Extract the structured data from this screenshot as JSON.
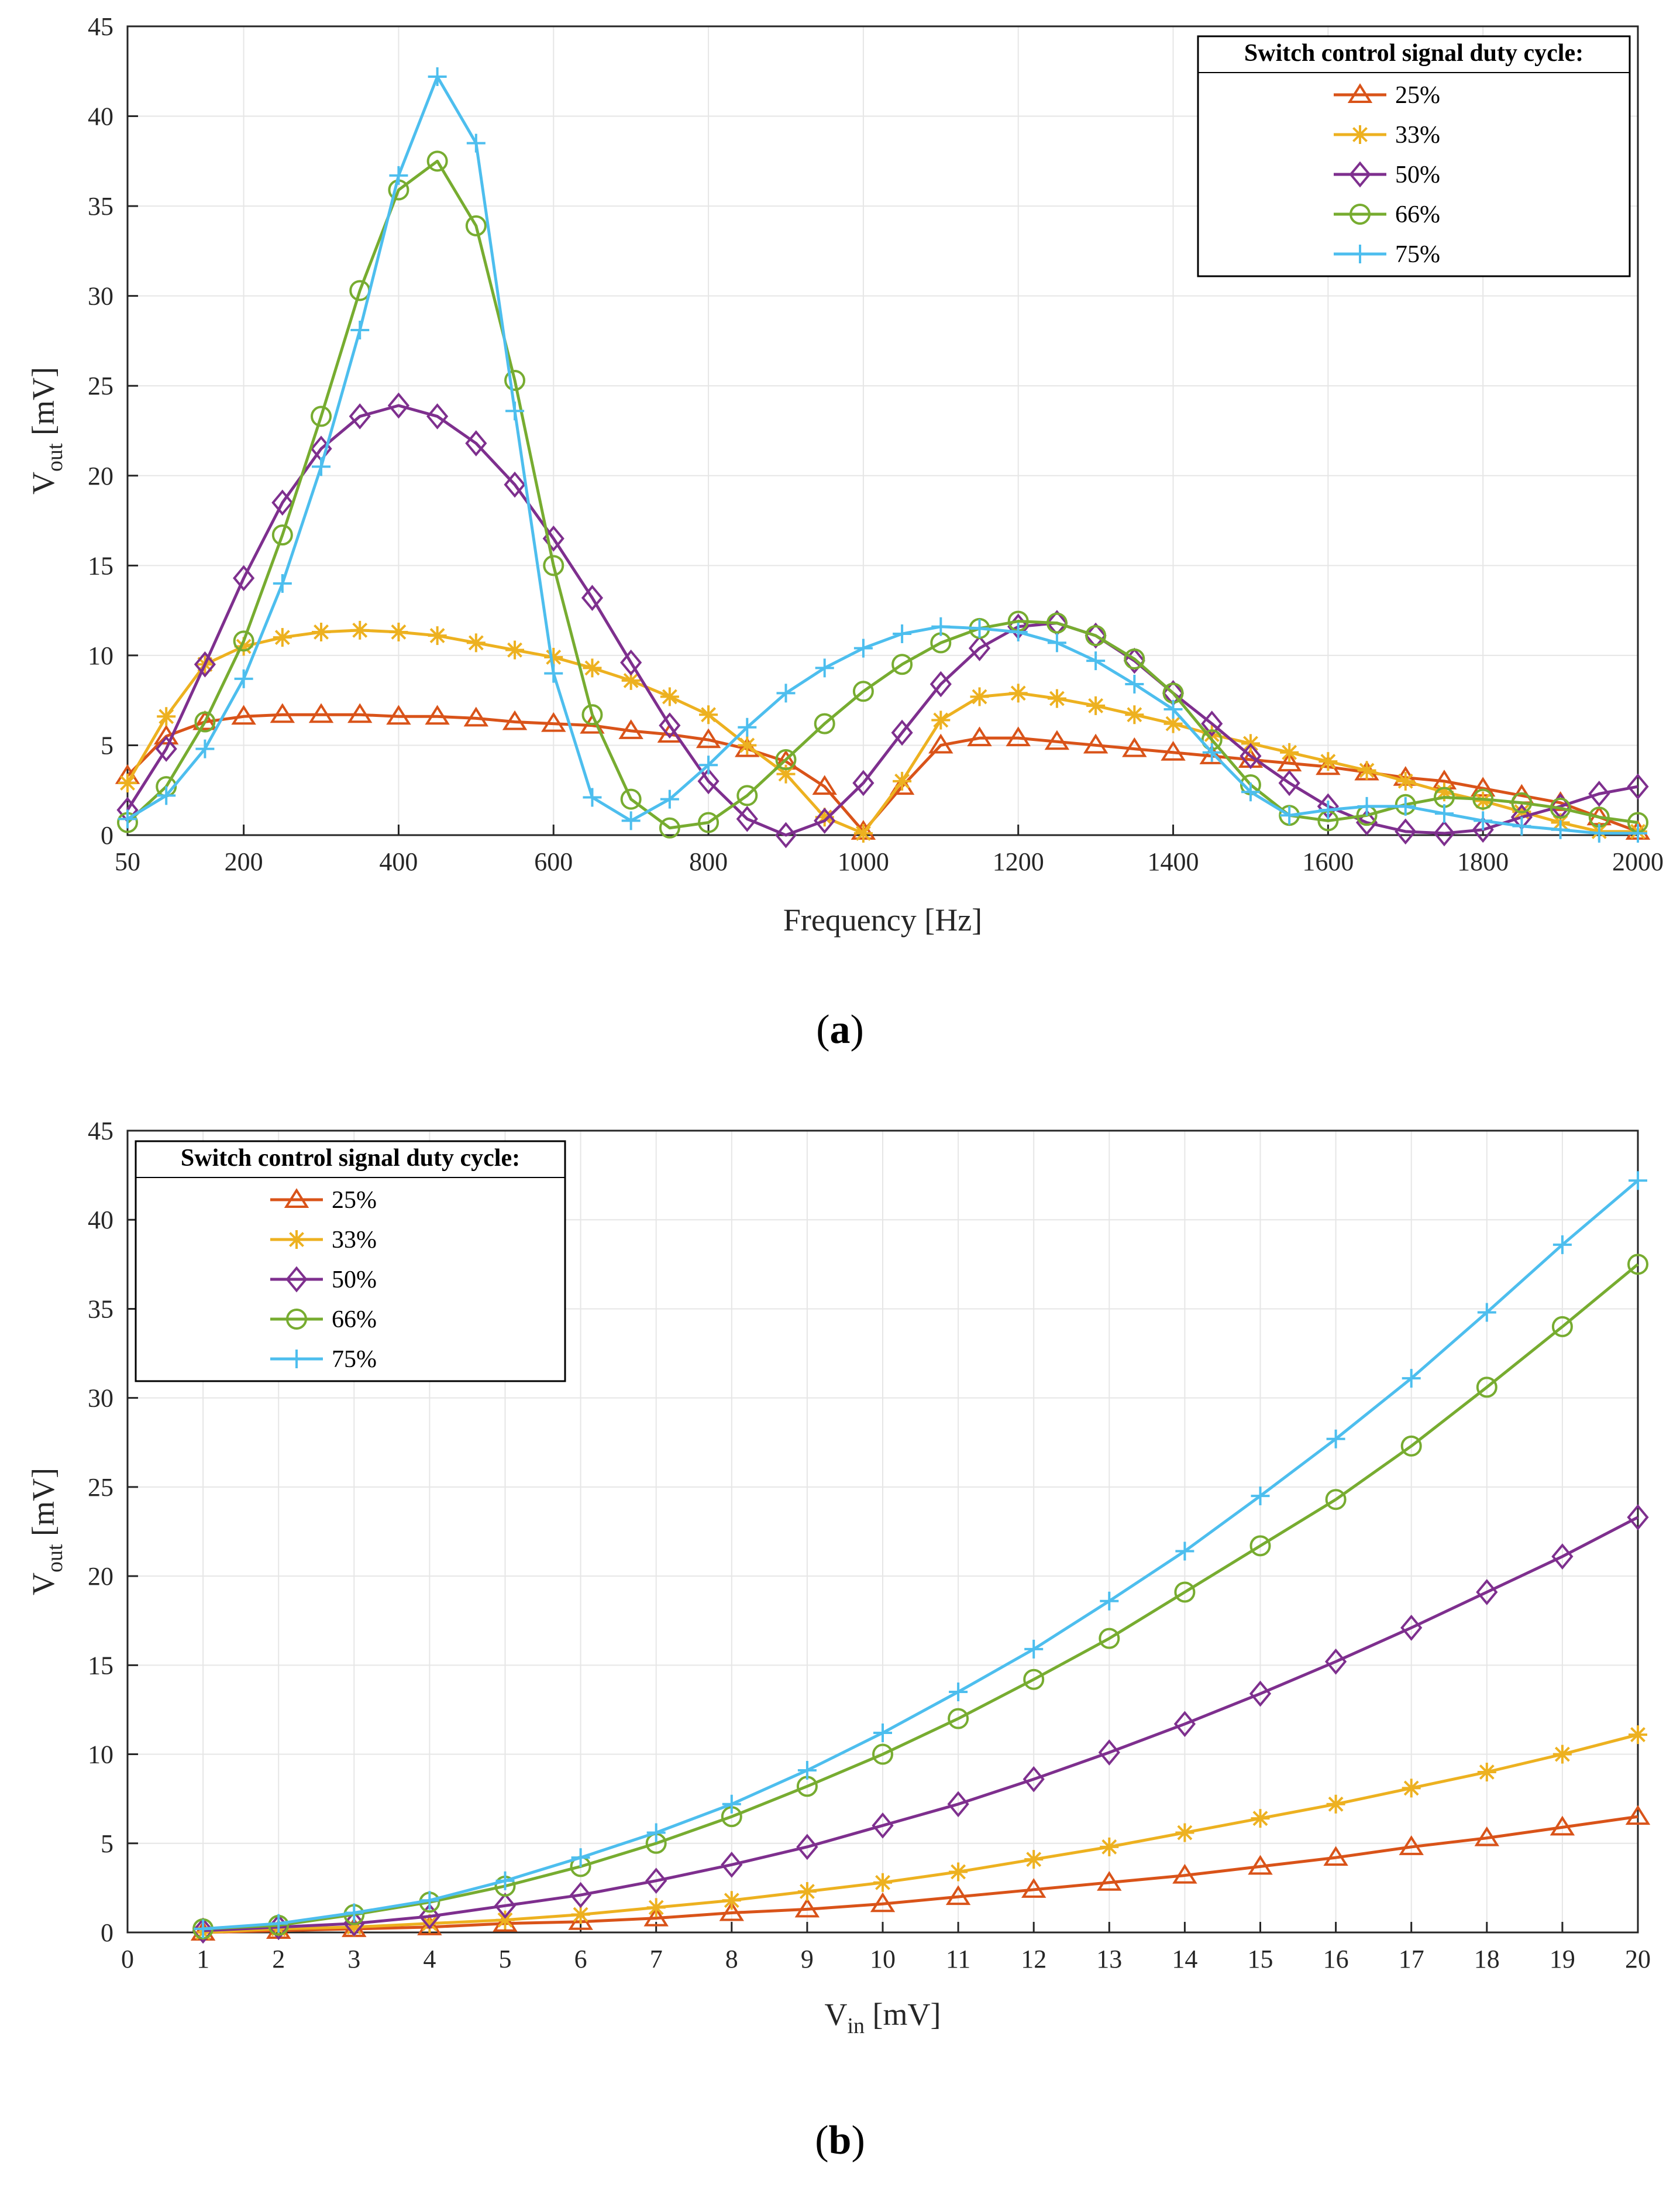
{
  "colors": {
    "25%": "#D95319",
    "33%": "#EDB120",
    "50%": "#7E2F8E",
    "66%": "#77AC30",
    "75%": "#4DBEEE"
  },
  "chart_data": [
    {
      "type": "line",
      "caption": "a",
      "xlabel": "Frequency [Hz]",
      "ylabel_main": "V",
      "ylabel_sub": "out",
      "ylabel_unit": " [mV]",
      "xlim": [
        50,
        2000
      ],
      "ylim": [
        0,
        45
      ],
      "xticks": [
        50,
        200,
        400,
        600,
        800,
        1000,
        1200,
        1400,
        1600,
        1800,
        2000
      ],
      "yticks": [
        0,
        5,
        10,
        15,
        20,
        25,
        30,
        35,
        40,
        45
      ],
      "grid": true,
      "legend": {
        "title": "Switch control signal duty cycle:",
        "placement": "top-right"
      },
      "x": [
        50,
        100,
        150,
        200,
        250,
        300,
        350,
        400,
        450,
        500,
        550,
        600,
        650,
        700,
        750,
        800,
        850,
        900,
        950,
        1000,
        1050,
        1100,
        1150,
        1200,
        1250,
        1300,
        1350,
        1400,
        1450,
        1500,
        1550,
        1600,
        1650,
        1700,
        1750,
        1800,
        1850,
        1900,
        1950,
        2000
      ],
      "series": [
        {
          "name": "25%",
          "marker": "triangle",
          "values": [
            3.3,
            5.5,
            6.3,
            6.6,
            6.7,
            6.7,
            6.7,
            6.6,
            6.6,
            6.5,
            6.3,
            6.2,
            6.1,
            5.8,
            5.6,
            5.3,
            4.8,
            4.1,
            2.7,
            0.2,
            2.7,
            5.0,
            5.4,
            5.4,
            5.2,
            5.0,
            4.8,
            4.6,
            4.4,
            4.2,
            4.0,
            3.8,
            3.5,
            3.2,
            3.0,
            2.6,
            2.2,
            1.8,
            1.0,
            0.2
          ]
        },
        {
          "name": "33%",
          "marker": "asterisk",
          "values": [
            2.9,
            6.6,
            9.5,
            10.5,
            11.0,
            11.3,
            11.4,
            11.3,
            11.1,
            10.7,
            10.3,
            9.9,
            9.3,
            8.6,
            7.7,
            6.7,
            5.0,
            3.4,
            1.0,
            0.1,
            3.0,
            6.4,
            7.7,
            7.9,
            7.6,
            7.2,
            6.7,
            6.2,
            5.6,
            5.1,
            4.6,
            4.1,
            3.6,
            3.0,
            2.4,
            1.9,
            1.3,
            0.7,
            0.2,
            0.2
          ]
        },
        {
          "name": "50%",
          "marker": "diamond",
          "values": [
            1.4,
            4.8,
            9.5,
            14.3,
            18.5,
            21.5,
            23.3,
            23.9,
            23.3,
            21.8,
            19.5,
            16.5,
            13.2,
            9.6,
            6.1,
            3.0,
            0.9,
            0.0,
            0.8,
            2.9,
            5.7,
            8.4,
            10.4,
            11.6,
            11.8,
            11.1,
            9.7,
            7.9,
            6.2,
            4.4,
            2.9,
            1.6,
            0.7,
            0.2,
            0.1,
            0.3,
            1.0,
            1.6,
            2.3,
            2.7
          ]
        },
        {
          "name": "66%",
          "marker": "circle",
          "values": [
            0.7,
            2.7,
            6.3,
            10.8,
            16.7,
            23.3,
            30.3,
            35.9,
            37.5,
            33.9,
            25.3,
            15.0,
            6.7,
            2.0,
            0.4,
            0.7,
            2.2,
            4.2,
            6.2,
            8.0,
            9.5,
            10.7,
            11.5,
            11.9,
            11.8,
            11.1,
            9.8,
            7.9,
            5.3,
            2.8,
            1.1,
            0.8,
            1.1,
            1.7,
            2.1,
            2.0,
            1.8,
            1.5,
            1.0,
            0.7
          ]
        },
        {
          "name": "75%",
          "marker": "plus",
          "values": [
            0.9,
            2.2,
            4.8,
            8.7,
            14.0,
            20.5,
            28.1,
            36.7,
            42.2,
            38.5,
            23.6,
            9.0,
            2.1,
            0.8,
            2.0,
            3.9,
            6.0,
            7.9,
            9.3,
            10.4,
            11.2,
            11.6,
            11.5,
            11.3,
            10.7,
            9.7,
            8.4,
            7.0,
            4.6,
            2.4,
            1.1,
            1.4,
            1.6,
            1.6,
            1.2,
            0.8,
            0.5,
            0.3,
            0.1,
            0.1
          ]
        }
      ]
    },
    {
      "type": "line",
      "caption": "b",
      "xlabel_main": "V",
      "xlabel_sub": "in",
      "xlabel_unit": " [mV]",
      "ylabel_main": "V",
      "ylabel_sub": "out",
      "ylabel_unit": " [mV]",
      "xlim": [
        0,
        20
      ],
      "ylim": [
        0,
        45
      ],
      "xticks": [
        0,
        1,
        2,
        3,
        4,
        5,
        6,
        7,
        8,
        9,
        10,
        11,
        12,
        13,
        14,
        15,
        16,
        17,
        18,
        19,
        20
      ],
      "yticks": [
        0,
        5,
        10,
        15,
        20,
        25,
        30,
        35,
        40,
        45
      ],
      "grid": true,
      "legend": {
        "title": "Switch control signal duty cycle:",
        "placement": "top-left"
      },
      "x": [
        1,
        2,
        3,
        4,
        5,
        6,
        7,
        8,
        9,
        10,
        11,
        12,
        13,
        14,
        15,
        16,
        17,
        18,
        19,
        20
      ],
      "series": [
        {
          "name": "25%",
          "marker": "triangle",
          "values": [
            0.0,
            0.1,
            0.2,
            0.3,
            0.5,
            0.6,
            0.8,
            1.1,
            1.3,
            1.6,
            2.0,
            2.4,
            2.8,
            3.2,
            3.7,
            4.2,
            4.8,
            5.3,
            5.9,
            6.5
          ]
        },
        {
          "name": "33%",
          "marker": "asterisk",
          "values": [
            0.0,
            0.2,
            0.3,
            0.5,
            0.7,
            1.0,
            1.4,
            1.8,
            2.3,
            2.8,
            3.4,
            4.1,
            4.8,
            5.6,
            6.4,
            7.2,
            8.1,
            9.0,
            10.0,
            11.1
          ]
        },
        {
          "name": "50%",
          "marker": "diamond",
          "values": [
            0.1,
            0.3,
            0.5,
            0.9,
            1.5,
            2.1,
            2.9,
            3.8,
            4.8,
            6.0,
            7.2,
            8.6,
            10.1,
            11.7,
            13.4,
            15.2,
            17.1,
            19.1,
            21.1,
            23.3
          ]
        },
        {
          "name": "66%",
          "marker": "circle",
          "values": [
            0.2,
            0.4,
            1.0,
            1.7,
            2.6,
            3.7,
            5.0,
            6.5,
            8.2,
            10.0,
            12.0,
            14.2,
            16.5,
            19.1,
            21.7,
            24.3,
            27.3,
            30.6,
            34.0,
            37.5
          ]
        },
        {
          "name": "75%",
          "marker": "plus",
          "values": [
            0.2,
            0.5,
            1.1,
            1.8,
            2.9,
            4.2,
            5.6,
            7.2,
            9.1,
            11.2,
            13.5,
            15.9,
            18.6,
            21.4,
            24.5,
            27.7,
            31.1,
            34.8,
            38.6,
            42.2
          ]
        }
      ]
    }
  ]
}
